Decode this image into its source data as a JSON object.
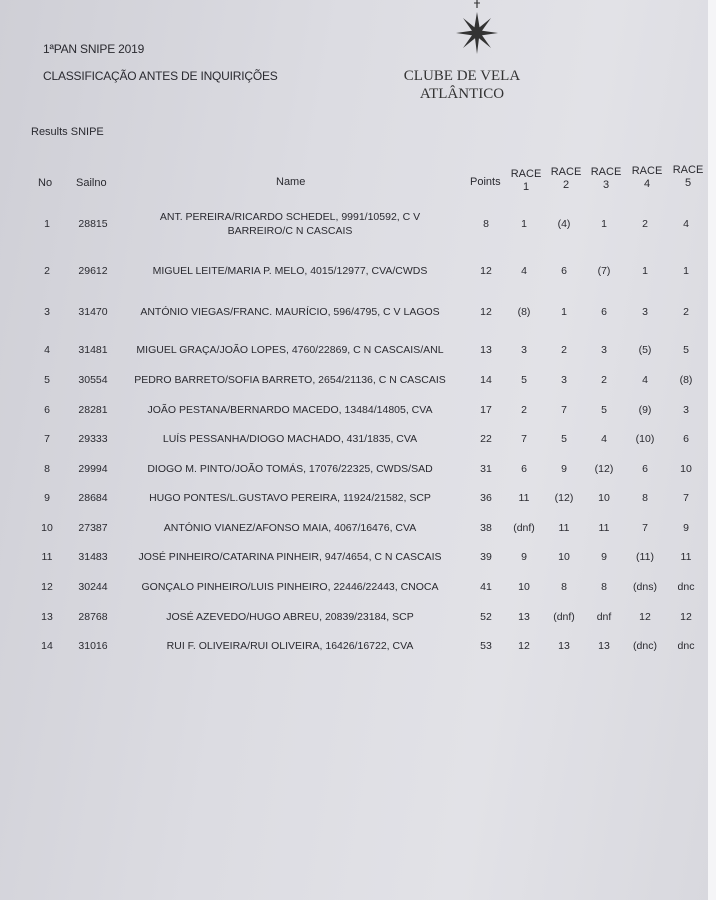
{
  "header": {
    "event": "1ªPAN SNIPE 2019",
    "subtitle": "CLASSIFICAÇÃO ANTES DE INQUIRIÇÕES",
    "club_line1": "CLUBE DE VELA",
    "club_line2": "ATLÂNTICO",
    "logo_icon": "compass-star-icon",
    "results_label": "Results SNIPE"
  },
  "columns": {
    "no": "No",
    "sailno": "Sailno",
    "name": "Name",
    "points": "Points",
    "races": [
      {
        "label": "RACE",
        "num": "1"
      },
      {
        "label": "RACE",
        "num": "2"
      },
      {
        "label": "RACE",
        "num": "3"
      },
      {
        "label": "RACE",
        "num": "4"
      },
      {
        "label": "RACE",
        "num": "5"
      }
    ]
  },
  "rows": [
    {
      "no": "1",
      "sailno": "28815",
      "name": "ANT. PEREIRA/RICARDO SCHEDEL, 9991/10592, C V BARREIRO/C N CASCAIS",
      "points": "8",
      "races": [
        "1",
        "(4)",
        "1",
        "2",
        "4"
      ]
    },
    {
      "no": "2",
      "sailno": "29612",
      "name": "MIGUEL LEITE/MARIA P. MELO, 4015/12977, CVA/CWDS",
      "points": "12",
      "races": [
        "4",
        "6",
        "(7)",
        "1",
        "1"
      ]
    },
    {
      "no": "3",
      "sailno": "31470",
      "name": "ANTÓNIO VIEGAS/FRANC. MAURÍCIO, 596/4795, C V LAGOS",
      "points": "12",
      "races": [
        "(8)",
        "1",
        "6",
        "3",
        "2"
      ]
    },
    {
      "no": "4",
      "sailno": "31481",
      "name": "MIGUEL GRAÇA/JOÃO LOPES, 4760/22869, C N CASCAIS/ANL",
      "points": "13",
      "races": [
        "3",
        "2",
        "3",
        "(5)",
        "5"
      ]
    },
    {
      "no": "5",
      "sailno": "30554",
      "name": "PEDRO BARRETO/SOFIA BARRETO, 2654/21136, C N CASCAIS",
      "points": "14",
      "races": [
        "5",
        "3",
        "2",
        "4",
        "(8)"
      ]
    },
    {
      "no": "6",
      "sailno": "28281",
      "name": "JOÃO PESTANA/BERNARDO MACEDO, 13484/14805, CVA",
      "points": "17",
      "races": [
        "2",
        "7",
        "5",
        "(9)",
        "3"
      ]
    },
    {
      "no": "7",
      "sailno": "29333",
      "name": "LUÍS PESSANHA/DIOGO MACHADO, 431/1835, CVA",
      "points": "22",
      "races": [
        "7",
        "5",
        "4",
        "(10)",
        "6"
      ]
    },
    {
      "no": "8",
      "sailno": "29994",
      "name": "DIOGO M. PINTO/JOÃO TOMÁS, 17076/22325, CWDS/SAD",
      "points": "31",
      "races": [
        "6",
        "9",
        "(12)",
        "6",
        "10"
      ]
    },
    {
      "no": "9",
      "sailno": "28684",
      "name": "HUGO PONTES/L.GUSTAVO PEREIRA, 11924/21582, SCP",
      "points": "36",
      "races": [
        "11",
        "(12)",
        "10",
        "8",
        "7"
      ]
    },
    {
      "no": "10",
      "sailno": "27387",
      "name": "ANTÓNIO VIANEZ/AFONSO MAIA, 4067/16476, CVA",
      "points": "38",
      "races": [
        "(dnf)",
        "11",
        "11",
        "7",
        "9"
      ]
    },
    {
      "no": "11",
      "sailno": "31483",
      "name": "JOSÉ PINHEIRO/CATARINA PINHEIR, 947/4654, C N CASCAIS",
      "points": "39",
      "races": [
        "9",
        "10",
        "9",
        "(11)",
        "11"
      ]
    },
    {
      "no": "12",
      "sailno": "30244",
      "name": "GONÇALO PINHEIRO/LUIS PINHEIRO, 22446/22443, CNOCA",
      "points": "41",
      "races": [
        "10",
        "8",
        "8",
        "(dns)",
        "dnc"
      ]
    },
    {
      "no": "13",
      "sailno": "28768",
      "name": "JOSÉ AZEVEDO/HUGO ABREU, 20839/23184, SCP",
      "points": "52",
      "races": [
        "13",
        "(dnf)",
        "dnf",
        "12",
        "12"
      ]
    },
    {
      "no": "14",
      "sailno": "31016",
      "name": "RUI F. OLIVEIRA/RUI OLIVEIRA, 16426/16722, CVA",
      "points": "53",
      "races": [
        "12",
        "13",
        "13",
        "(dnc)",
        "dnc"
      ]
    }
  ]
}
